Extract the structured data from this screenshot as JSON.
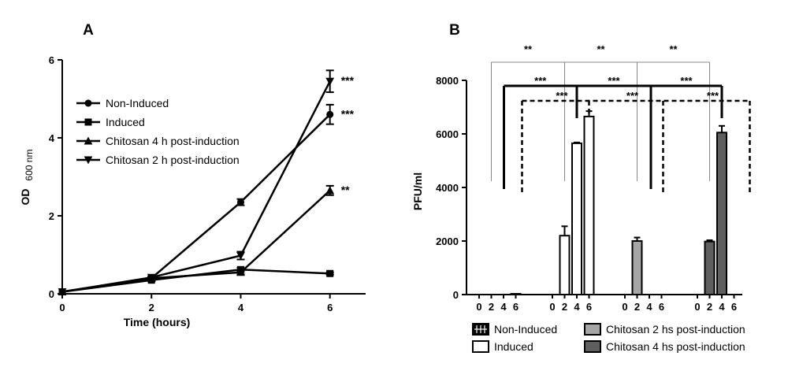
{
  "chart_data": [
    {
      "panel": "A",
      "type": "line",
      "xlabel": "Time (hours)",
      "ylabel_main": "OD",
      "ylabel_sub": "600 nm",
      "xlim": [
        0,
        6.8
      ],
      "ylim": [
        0,
        6
      ],
      "xticks": [
        0,
        2,
        4,
        6
      ],
      "yticks": [
        0,
        2,
        4,
        6
      ],
      "legend_position": "left",
      "series": [
        {
          "name": "Non-Induced",
          "marker": "circle",
          "x": [
            0,
            2,
            4,
            6
          ],
          "y": [
            0.05,
            0.4,
            2.35,
            4.6
          ],
          "err": [
            0,
            0.03,
            0.08,
            0.25
          ]
        },
        {
          "name": "Induced",
          "marker": "square",
          "x": [
            0,
            2,
            4,
            6
          ],
          "y": [
            0.05,
            0.35,
            0.62,
            0.52
          ],
          "err": [
            0,
            0.03,
            0.05,
            0.03
          ]
        },
        {
          "name": "Chitosan 4 h post-induction",
          "marker": "triangle-up",
          "x": [
            0,
            2,
            4,
            6
          ],
          "y": [
            0.05,
            0.4,
            0.55,
            2.65
          ],
          "err": [
            0,
            0.03,
            0.05,
            0.12
          ]
        },
        {
          "name": "Chitosan 2 h post-induction",
          "marker": "triangle-down",
          "x": [
            0,
            2,
            4,
            6
          ],
          "y": [
            0.05,
            0.42,
            0.98,
            5.45
          ],
          "err": [
            0,
            0.03,
            0.1,
            0.28
          ]
        }
      ],
      "annotations": [
        {
          "text": "***",
          "x": 6,
          "y": 5.45
        },
        {
          "text": "***",
          "x": 6,
          "y": 4.6
        },
        {
          "text": "**",
          "x": 6,
          "y": 2.65
        }
      ]
    },
    {
      "panel": "B",
      "type": "bar",
      "ylabel": "PFU/ml",
      "ylim": [
        0,
        8000
      ],
      "yticks": [
        0,
        2000,
        4000,
        6000,
        8000
      ],
      "legend_position": "bottom",
      "groups": [
        {
          "name": "Non-Induced",
          "style": "hatched",
          "categories": [
            "0",
            "2",
            "4",
            "6"
          ],
          "values": [
            0,
            0,
            0,
            30
          ],
          "err": [
            0,
            0,
            0,
            0
          ]
        },
        {
          "name": "Induced",
          "style": "white",
          "categories": [
            "0",
            "2",
            "4",
            "6"
          ],
          "values": [
            0,
            2200,
            5650,
            6650
          ],
          "err": [
            0,
            350,
            30,
            200
          ]
        },
        {
          "name": "Chitosan 2 hs post-induction",
          "style": "light-gray",
          "categories": [
            "0",
            "2",
            "4",
            "6"
          ],
          "values": [
            0,
            2000,
            0,
            0
          ],
          "err": [
            0,
            130,
            0,
            0
          ]
        },
        {
          "name": "Chitosan 4 hs post-induction",
          "style": "dark-gray",
          "categories": [
            "0",
            "2",
            "4",
            "6"
          ],
          "values": [
            0,
            1980,
            6050,
            0
          ],
          "err": [
            0,
            50,
            250,
            0
          ]
        }
      ],
      "significance": {
        "top_stars": [
          "**",
          "**",
          "**"
        ],
        "solid_stars": [
          "***",
          "***",
          "***"
        ],
        "dashed_stars": [
          "***",
          "***",
          "***"
        ]
      }
    }
  ],
  "colors": {
    "axis": "#000000",
    "light_gray_bar": "#a6a6a6",
    "dark_gray_bar": "#5f5f5f",
    "bracket_thin": "#888888"
  }
}
